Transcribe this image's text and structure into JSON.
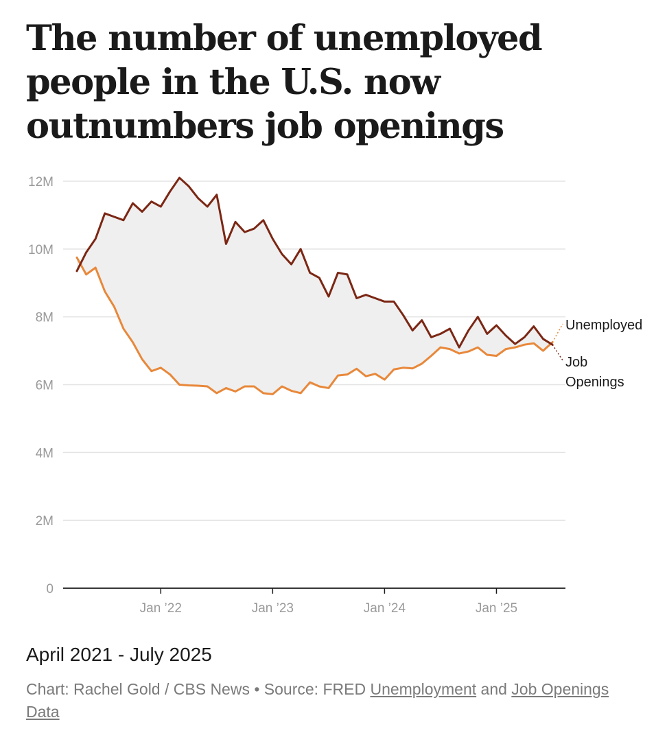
{
  "chart_data": {
    "type": "line",
    "title": "The number of unemployed people in the U.S. now outnumbers job openings",
    "subtitle": "April 2021 - July 2025",
    "ylim": [
      0,
      12000000
    ],
    "y_ticks": [
      {
        "value": 0,
        "label": "0"
      },
      {
        "value": 2000000,
        "label": "2M"
      },
      {
        "value": 4000000,
        "label": "4M"
      },
      {
        "value": 6000000,
        "label": "6M"
      },
      {
        "value": 8000000,
        "label": "8M"
      },
      {
        "value": 10000000,
        "label": "10M"
      },
      {
        "value": 12000000,
        "label": "12M"
      }
    ],
    "x_ticks": [
      {
        "index": 9,
        "label": "Jan ’22"
      },
      {
        "index": 21,
        "label": "Jan ’23"
      },
      {
        "index": 33,
        "label": "Jan ’24"
      },
      {
        "index": 45,
        "label": "Jan ’25"
      }
    ],
    "x": [
      "2021-04",
      "2021-05",
      "2021-06",
      "2021-07",
      "2021-08",
      "2021-09",
      "2021-10",
      "2021-11",
      "2021-12",
      "2022-01",
      "2022-02",
      "2022-03",
      "2022-04",
      "2022-05",
      "2022-06",
      "2022-07",
      "2022-08",
      "2022-09",
      "2022-10",
      "2022-11",
      "2022-12",
      "2023-01",
      "2023-02",
      "2023-03",
      "2023-04",
      "2023-05",
      "2023-06",
      "2023-07",
      "2023-08",
      "2023-09",
      "2023-10",
      "2023-11",
      "2023-12",
      "2024-01",
      "2024-02",
      "2024-03",
      "2024-04",
      "2024-05",
      "2024-06",
      "2024-07",
      "2024-08",
      "2024-09",
      "2024-10",
      "2024-11",
      "2024-12",
      "2025-01",
      "2025-02",
      "2025-03",
      "2025-04",
      "2025-05",
      "2025-06",
      "2025-07"
    ],
    "series": [
      {
        "name": "Unemployed",
        "color": "#e8883a",
        "values": [
          9.75,
          9.25,
          9.45,
          8.75,
          8.3,
          7.65,
          7.25,
          6.75,
          6.4,
          6.5,
          6.3,
          6.0,
          5.98,
          5.97,
          5.95,
          5.75,
          5.9,
          5.8,
          5.95,
          5.95,
          5.75,
          5.72,
          5.95,
          5.82,
          5.75,
          6.07,
          5.95,
          5.9,
          6.27,
          6.3,
          6.47,
          6.25,
          6.32,
          6.15,
          6.45,
          6.5,
          6.48,
          6.62,
          6.85,
          7.1,
          7.05,
          6.92,
          6.98,
          7.1,
          6.88,
          6.85,
          7.05,
          7.1,
          7.18,
          7.22,
          7.0,
          7.25
        ]
      },
      {
        "name": "Job Openings",
        "color": "#7b2714",
        "values": [
          9.35,
          9.9,
          10.3,
          11.05,
          10.95,
          10.85,
          11.35,
          11.1,
          11.4,
          11.25,
          11.7,
          12.1,
          11.85,
          11.5,
          11.25,
          11.6,
          10.15,
          10.8,
          10.5,
          10.6,
          10.85,
          10.3,
          9.85,
          9.55,
          10.0,
          9.3,
          9.15,
          8.6,
          9.3,
          9.25,
          8.55,
          8.65,
          8.55,
          8.45,
          8.45,
          8.05,
          7.6,
          7.9,
          7.4,
          7.5,
          7.65,
          7.1,
          7.6,
          8.0,
          7.5,
          7.75,
          7.45,
          7.2,
          7.4,
          7.72,
          7.35,
          7.18
        ]
      }
    ],
    "legend": [
      {
        "label": "Unemployed",
        "color": "#e8883a"
      },
      {
        "label_lines": [
          "Job",
          "Openings"
        ],
        "color": "#7b2714"
      }
    ],
    "fill_between": "#efefef",
    "grid": true,
    "legend_placement": "right"
  },
  "caption": {
    "date_range": "April 2021 - July 2025",
    "credit_prefix": "Chart: Rachel Gold / CBS News  • Source: FRED ",
    "link1": "Unemployment",
    "connector": " and ",
    "link2": "Job Openings Data"
  }
}
